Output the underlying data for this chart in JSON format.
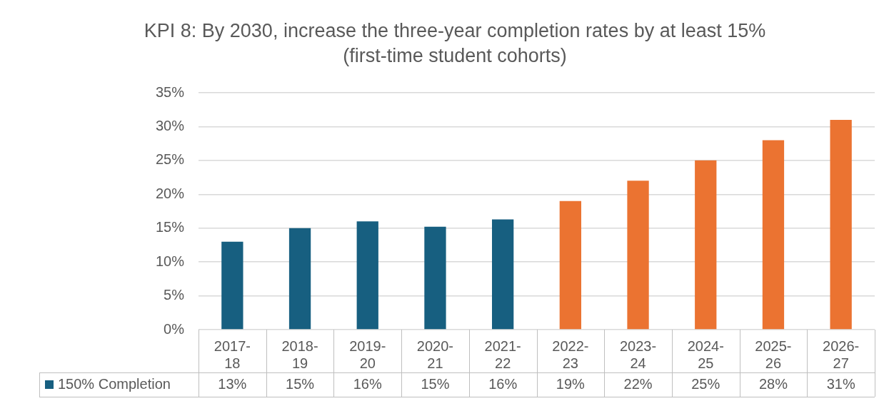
{
  "chart_data": {
    "type": "bar",
    "title": "KPI 8: By 2030, increase the three-year completion rates by at least 15% (first-time student cohorts)",
    "categories": [
      "2017-18",
      "2018-19",
      "2019-20",
      "2020-21",
      "2021-22",
      "2022-23",
      "2023-24",
      "2024-25",
      "2025-26",
      "2026-27"
    ],
    "series": [
      {
        "name": "150% Completion",
        "color": "#175f80",
        "colors": [
          "#175f80",
          "#175f80",
          "#175f80",
          "#175f80",
          "#175f80",
          "#eb7331",
          "#eb7331",
          "#eb7331",
          "#eb7331",
          "#eb7331"
        ],
        "values": [
          13,
          15,
          16,
          15.2,
          16.3,
          19,
          22,
          25,
          28,
          31
        ],
        "value_labels": [
          "13%",
          "15%",
          "16%",
          "15%",
          "16%",
          "19%",
          "22%",
          "25%",
          "28%",
          "31%"
        ]
      }
    ],
    "ylim": [
      0,
      35
    ],
    "yticks": [
      {
        "value": 0,
        "label": "0%"
      },
      {
        "value": 5,
        "label": "5%"
      },
      {
        "value": 10,
        "label": "10%"
      },
      {
        "value": 15,
        "label": "15%"
      },
      {
        "value": 20,
        "label": "20%"
      },
      {
        "value": 25,
        "label": "25%"
      },
      {
        "value": 30,
        "label": "30%"
      },
      {
        "value": 35,
        "label": "35%"
      }
    ],
    "grid": "y",
    "legend": "bottom left"
  }
}
